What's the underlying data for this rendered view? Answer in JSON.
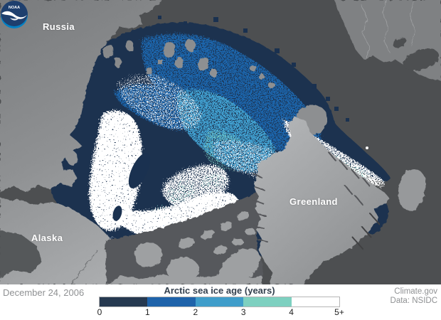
{
  "map": {
    "labels": [
      {
        "id": "russia",
        "text": "Russia"
      },
      {
        "id": "alaska",
        "text": "Alaska"
      },
      {
        "id": "greenland",
        "text": "Greenland"
      }
    ],
    "logo_text": "NOAA",
    "colors": {
      "ocean": "#4d4f51",
      "land_dark": "#7e8082",
      "land_light": "#b2b4b6",
      "ice_age_0_1": "#1a3150",
      "ice_age_1_2": "#1f66ad",
      "ice_age_2_3": "#42a2d2",
      "ice_age_3_4": "#7fd2c3",
      "ice_age_5plus": "#ffffff",
      "noaa_logo_top": "#1e3f6e",
      "noaa_logo_bottom": "#0082c6"
    }
  },
  "footer": {
    "date": "December 24, 2006",
    "legend": {
      "title": "Arctic sea ice age (years)",
      "ticks": [
        "0",
        "1",
        "2",
        "3",
        "4",
        "5+"
      ],
      "colors": [
        "#263950",
        "#1f63aa",
        "#3f9dca",
        "#7ed0c0",
        "#ffffff"
      ]
    },
    "credits": [
      "Climate.gov",
      "Data: NSIDC"
    ]
  }
}
